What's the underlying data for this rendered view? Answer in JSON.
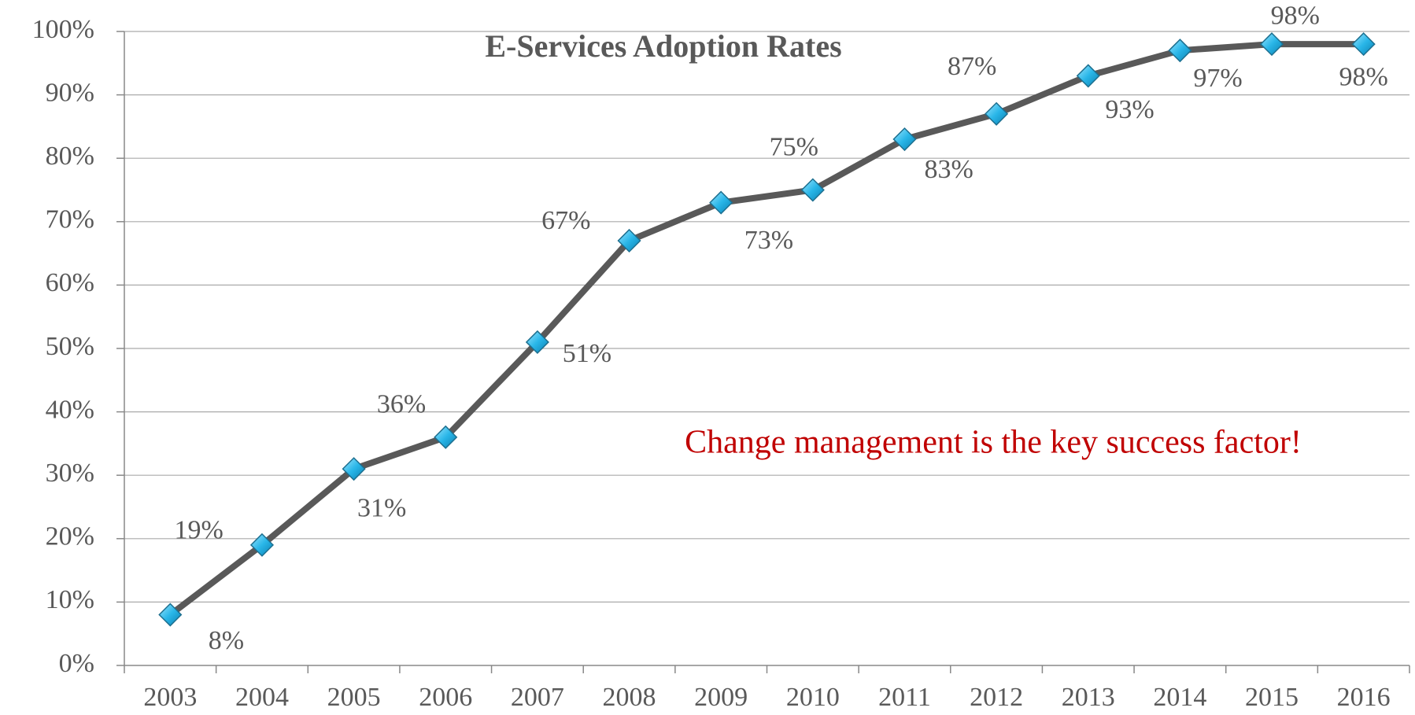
{
  "chart_data": {
    "type": "line",
    "title": "E-Services Adoption Rates",
    "annotation": "Change management is the key success factor!",
    "categories": [
      "2003",
      "2004",
      "2005",
      "2006",
      "2007",
      "2008",
      "2009",
      "2010",
      "2011",
      "2012",
      "2013",
      "2014",
      "2015",
      "2016"
    ],
    "series": [
      {
        "name": "E-Services Adoption Rates",
        "color": "#595959",
        "marker_color": "#29b6e8",
        "values": [
          8,
          19,
          31,
          36,
          51,
          67,
          73,
          75,
          83,
          87,
          93,
          97,
          98,
          98
        ],
        "value_labels": [
          "8%",
          "19%",
          "31%",
          "36%",
          "51%",
          "67%",
          "73%",
          "75%",
          "83%",
          "87%",
          "93%",
          "97%",
          "98%",
          "98%"
        ]
      }
    ],
    "ylim": [
      0,
      100
    ],
    "yticks": [
      {
        "value": 0,
        "label": "0%"
      },
      {
        "value": 10,
        "label": "10%"
      },
      {
        "value": 20,
        "label": "20%"
      },
      {
        "value": 30,
        "label": "30%"
      },
      {
        "value": 40,
        "label": "40%"
      },
      {
        "value": 50,
        "label": "50%"
      },
      {
        "value": 60,
        "label": "60%"
      },
      {
        "value": 70,
        "label": "70%"
      },
      {
        "value": 80,
        "label": "80%"
      },
      {
        "value": 90,
        "label": "90%"
      },
      {
        "value": 100,
        "label": "100%"
      }
    ],
    "grid": true
  }
}
